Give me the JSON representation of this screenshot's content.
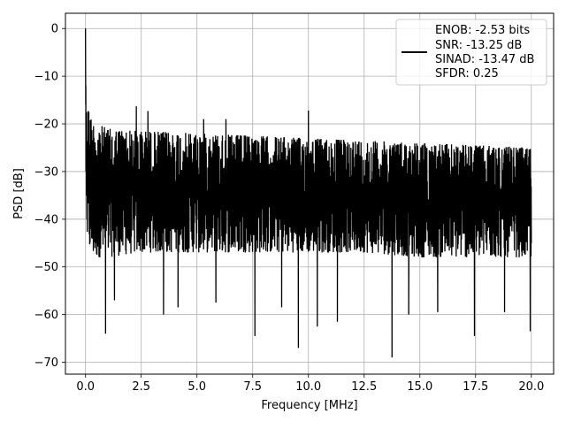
{
  "chart_data": {
    "type": "line",
    "title": "",
    "xlabel": "Frequency [MHz]",
    "ylabel": "PSD [dB]",
    "xlim": [
      -0.9,
      21.0
    ],
    "ylim": [
      -72.5,
      3.2
    ],
    "x_ticks": [
      0.0,
      2.5,
      5.0,
      7.5,
      10.0,
      12.5,
      15.0,
      17.5,
      20.0
    ],
    "x_tick_labels": [
      "0.0",
      "2.5",
      "5.0",
      "7.5",
      "10.0",
      "12.5",
      "15.0",
      "17.5",
      "20.0"
    ],
    "y_ticks": [
      0,
      -10,
      -20,
      -30,
      -40,
      -50,
      -60,
      -70
    ],
    "y_tick_labels": [
      "0",
      "−10",
      "−20",
      "−30",
      "−40",
      "−50",
      "−60",
      "−70"
    ],
    "grid": true,
    "legend_position": "top-right",
    "series": [
      {
        "color": "#000000",
        "approximate": true,
        "x_range": [
          0.0,
          20.0
        ],
        "dc_peak": {
          "x": 0.0,
          "y": 0.0
        },
        "noise_envelope": {
          "x": [
            0.0,
            0.3,
            1.0,
            2.5,
            5.0,
            7.5,
            10.0,
            12.5,
            15.0,
            17.5,
            20.0
          ],
          "upper": [
            -14.0,
            -19.5,
            -21.0,
            -21.5,
            -22.0,
            -22.5,
            -23.0,
            -23.5,
            -24.0,
            -24.5,
            -25.0
          ],
          "lower": [
            -45.0,
            -48.0,
            -48.0,
            -47.0,
            -47.0,
            -47.0,
            -47.0,
            -47.0,
            -48.0,
            -48.0,
            -48.0
          ]
        },
        "peaks": [
          {
            "x": 2.28,
            "y": -16.3
          },
          {
            "x": 2.8,
            "y": -17.3
          },
          {
            "x": 10.0,
            "y": -17.2
          },
          {
            "x": 0.15,
            "y": -17.5
          },
          {
            "x": 5.3,
            "y": -19.0
          },
          {
            "x": 6.3,
            "y": -19.0
          }
        ],
        "dips": [
          {
            "x": 0.9,
            "y": -64.0
          },
          {
            "x": 1.3,
            "y": -57.0
          },
          {
            "x": 3.5,
            "y": -60.0
          },
          {
            "x": 4.15,
            "y": -58.5
          },
          {
            "x": 5.85,
            "y": -57.5
          },
          {
            "x": 7.6,
            "y": -64.5
          },
          {
            "x": 8.8,
            "y": -58.5
          },
          {
            "x": 9.55,
            "y": -67.0
          },
          {
            "x": 10.4,
            "y": -62.5
          },
          {
            "x": 11.3,
            "y": -61.5
          },
          {
            "x": 13.75,
            "y": -69.0
          },
          {
            "x": 14.5,
            "y": -60.0
          },
          {
            "x": 15.8,
            "y": -59.5
          },
          {
            "x": 17.45,
            "y": -64.5
          },
          {
            "x": 18.8,
            "y": -59.5
          },
          {
            "x": 19.95,
            "y": -63.5
          }
        ]
      }
    ],
    "legend": {
      "lines": [
        "ENOB: -2.53 bits",
        "SNR: -13.25 dB",
        "SINAD: -13.47 dB",
        "SFDR: 0.25"
      ]
    }
  }
}
